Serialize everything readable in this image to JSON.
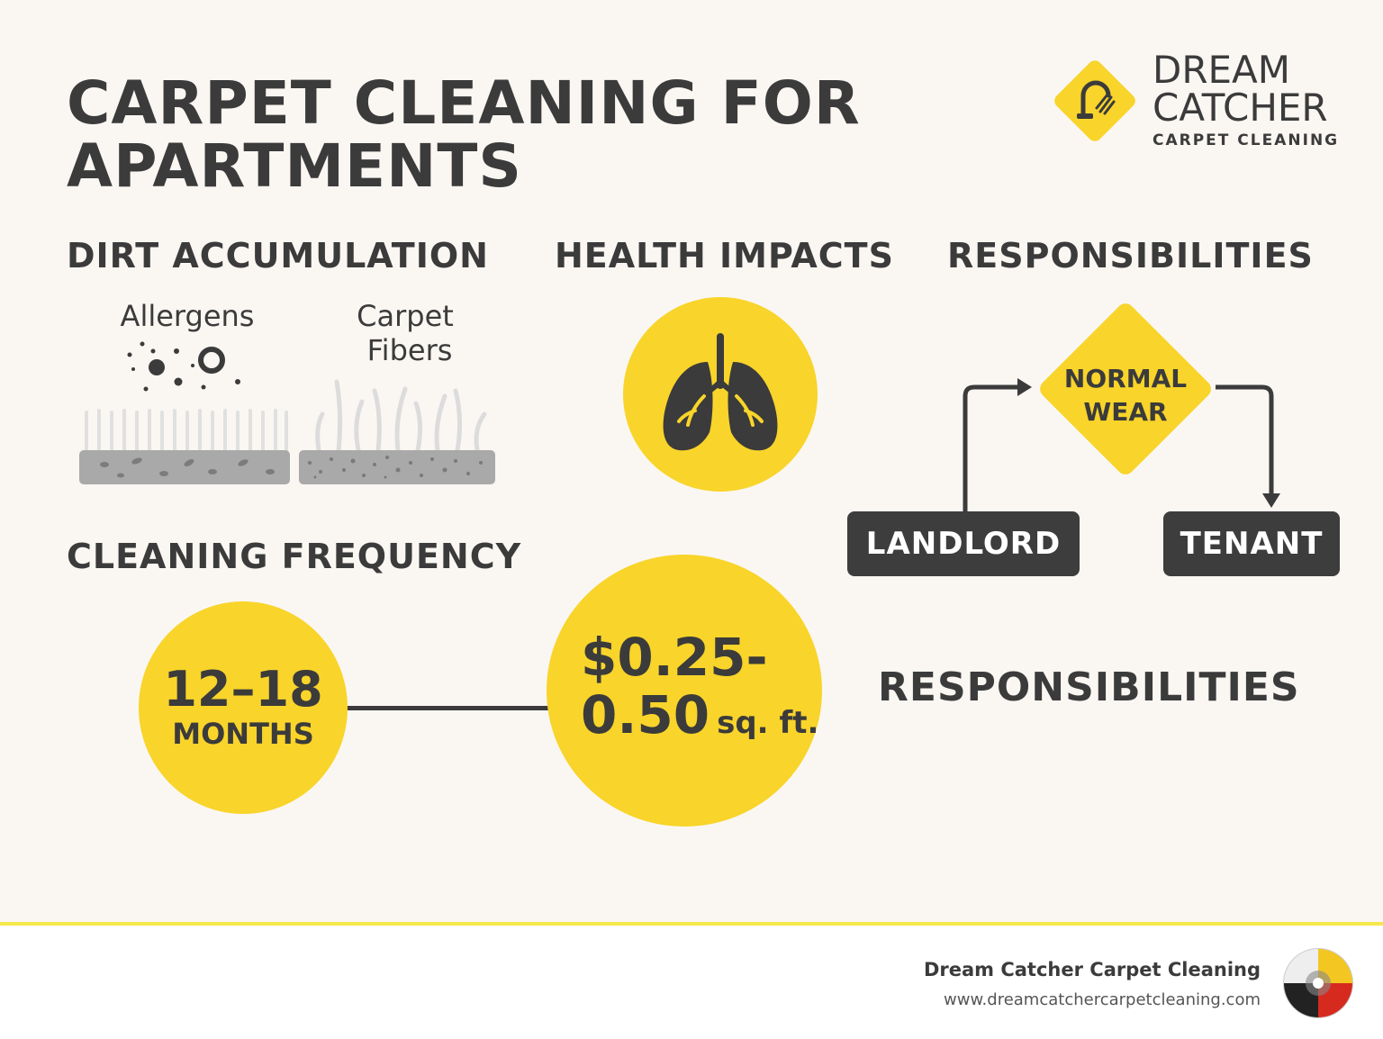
{
  "title": "CARPET CLEANING FOR APARTMENTS",
  "brand": {
    "line1": "DREAM",
    "line2": "CATCHER",
    "sub": "CARPET CLEANING",
    "accent_color": "#f9d42a"
  },
  "sections": {
    "dirt": {
      "heading": "DIRT ACCUMULATION",
      "allergens_label": "Allergens",
      "fibers_label_1": "Carpet",
      "fibers_label_2": "Fibers"
    },
    "health": {
      "heading": "HEALTH IMPACTS",
      "icon": "lungs-icon"
    },
    "responsibilities": {
      "heading": "RESPONSIBILITIES",
      "diamond_line1": "NORMAL",
      "diamond_line2": "WEAR",
      "landlord": "LANDLORD",
      "tenant": "TENANT"
    },
    "frequency": {
      "heading": "CLEANING FREQUENCY",
      "interval_value": "12–18",
      "interval_unit": "MONTHS",
      "price_line1": "$0.25-",
      "price_value": "0.50",
      "price_unit": "sq. ft."
    },
    "responsibilities_2": {
      "heading": "RESPONSIBILITIES"
    }
  },
  "footer": {
    "company": "Dream Catcher Carpet Cleaning",
    "url": "www.dreamcatchercarpetcleaning.com"
  },
  "colors": {
    "background": "#faf7f3",
    "dark": "#3b3b3b",
    "yellow": "#f9d42a",
    "footer_line": "#f4e84a"
  }
}
